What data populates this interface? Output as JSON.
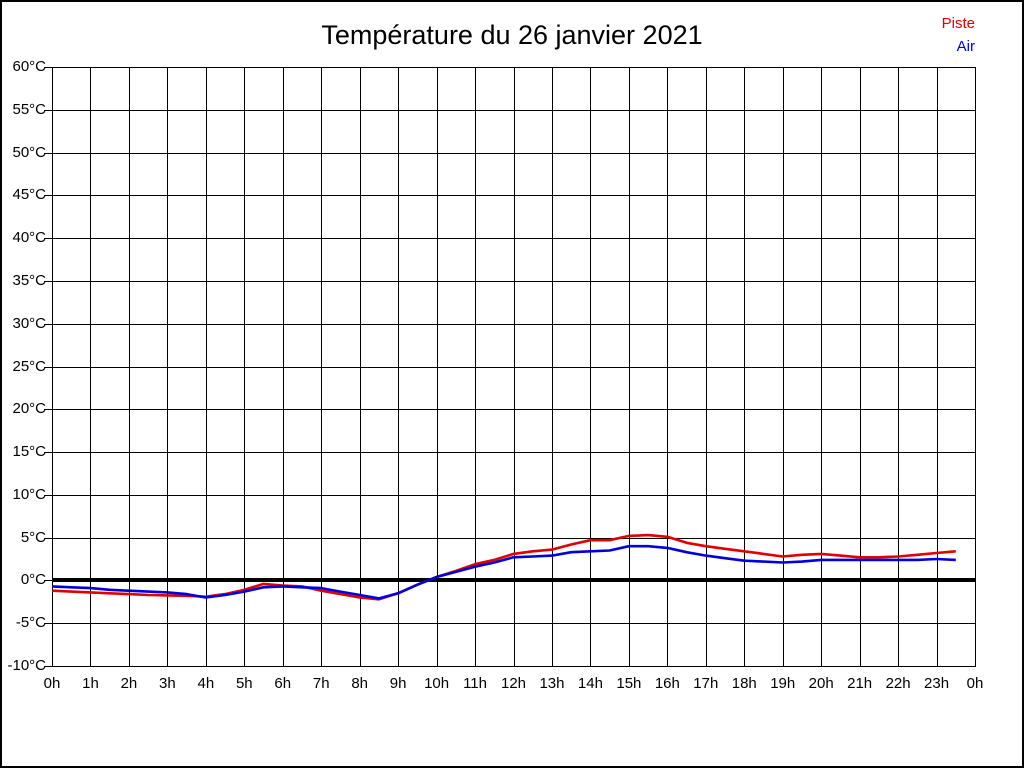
{
  "page": {
    "background": "#ffffff",
    "border_color": "#000000"
  },
  "header": {
    "title": "Température du 26 janvier 2021"
  },
  "legend": {
    "items": [
      {
        "label": "Piste",
        "color": "#e00000"
      },
      {
        "label": "Air",
        "color": "#0000dd"
      }
    ]
  },
  "chart_data": {
    "type": "line",
    "title": "Température du 26 janvier 2021",
    "xlabel": "",
    "ylabel": "",
    "x_unit": "hours",
    "xlim": [
      0,
      24
    ],
    "ylim": [
      -10,
      60
    ],
    "y_tick_step": 5,
    "grid": true,
    "legend_position": "top-right",
    "grid_color": "#000000",
    "zero_line": {
      "value": 0,
      "color": "#000000",
      "width": 4
    },
    "y_tick_labels": [
      "60°C",
      "55°C",
      "50°C",
      "45°C",
      "40°C",
      "35°C",
      "30°C",
      "25°C",
      "20°C",
      "15°C",
      "10°C",
      "5°C",
      "0°C",
      "-5°C",
      "-10°C"
    ],
    "y_tick_values": [
      60,
      55,
      50,
      45,
      40,
      35,
      30,
      25,
      20,
      15,
      10,
      5,
      0,
      -5,
      -10
    ],
    "x_tick_labels": [
      "0h",
      "1h",
      "2h",
      "3h",
      "4h",
      "5h",
      "6h",
      "7h",
      "8h",
      "9h",
      "10h",
      "11h",
      "12h",
      "13h",
      "14h",
      "15h",
      "16h",
      "17h",
      "18h",
      "19h",
      "20h",
      "21h",
      "22h",
      "23h",
      "0h"
    ],
    "x_tick_values": [
      0,
      1,
      2,
      3,
      4,
      5,
      6,
      7,
      8,
      9,
      10,
      11,
      12,
      13,
      14,
      15,
      16,
      17,
      18,
      19,
      20,
      21,
      22,
      23,
      24
    ],
    "x": [
      0,
      0.5,
      1,
      1.5,
      2,
      2.5,
      3,
      3.5,
      4,
      4.5,
      5,
      5.5,
      6,
      6.5,
      7,
      7.5,
      8,
      8.5,
      9,
      9.5,
      10,
      10.5,
      11,
      11.5,
      12,
      12.5,
      13,
      13.5,
      14,
      14.5,
      15,
      15.5,
      16,
      16.5,
      17,
      17.5,
      18,
      18.5,
      19,
      19.5,
      20,
      20.5,
      21,
      21.5,
      22,
      22.5,
      23,
      23.5
    ],
    "series": [
      {
        "name": "Piste",
        "color": "#e00000",
        "values": [
          -1.2,
          -1.3,
          -1.4,
          -1.5,
          -1.6,
          -1.7,
          -1.75,
          -1.8,
          -1.9,
          -1.6,
          -1.1,
          -0.4,
          -0.6,
          -0.7,
          -1.2,
          -1.6,
          -2.0,
          -2.2,
          -1.5,
          -0.5,
          0.4,
          1.1,
          1.9,
          2.4,
          3.1,
          3.4,
          3.6,
          4.2,
          4.7,
          4.7,
          5.2,
          5.3,
          5.1,
          4.4,
          4.0,
          3.7,
          3.4,
          3.1,
          2.8,
          3.0,
          3.1,
          2.9,
          2.7,
          2.7,
          2.8,
          3.0,
          3.2,
          3.4
        ]
      },
      {
        "name": "Air",
        "color": "#0000dd",
        "values": [
          -0.7,
          -0.8,
          -0.9,
          -1.1,
          -1.2,
          -1.3,
          -1.4,
          -1.6,
          -2.0,
          -1.7,
          -1.3,
          -0.8,
          -0.7,
          -0.8,
          -0.9,
          -1.3,
          -1.7,
          -2.1,
          -1.5,
          -0.5,
          0.4,
          1.0,
          1.6,
          2.1,
          2.7,
          2.8,
          2.9,
          3.3,
          3.4,
          3.5,
          4.0,
          4.0,
          3.8,
          3.3,
          2.9,
          2.6,
          2.3,
          2.2,
          2.1,
          2.2,
          2.4,
          2.4,
          2.4,
          2.4,
          2.4,
          2.4,
          2.5,
          2.4
        ]
      }
    ]
  }
}
